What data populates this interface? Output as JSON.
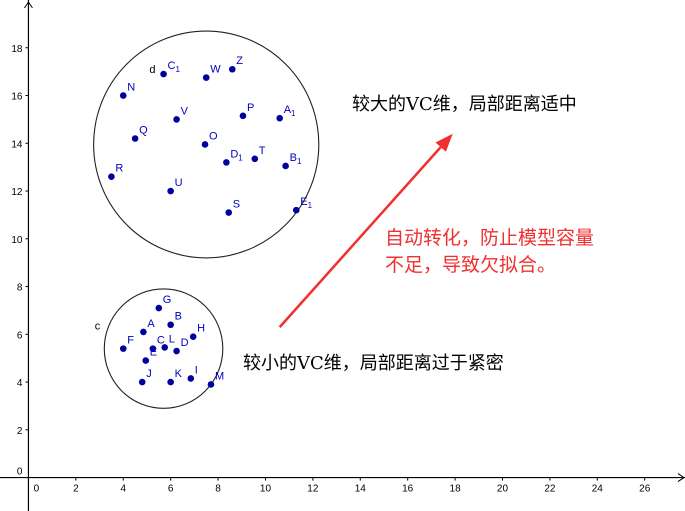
{
  "chart_data": {
    "type": "scatter",
    "title": "",
    "xlabel": "",
    "ylabel": "",
    "xlim": [
      -1.2,
      27.7
    ],
    "ylim": [
      -1.4,
      20
    ],
    "grid": false,
    "x_ticks": [
      "0",
      "2",
      "4",
      "6",
      "8",
      "10",
      "12",
      "14",
      "16",
      "18",
      "20",
      "22",
      "24",
      "26"
    ],
    "y_ticks": [
      "0",
      "2",
      "4",
      "6",
      "8",
      "10",
      "12",
      "14",
      "16",
      "18"
    ],
    "point_color": "#0000a0",
    "label_color": "#0000c0",
    "points": [
      {
        "name": "N",
        "base": "N",
        "sub": "",
        "x": 4.0,
        "y": 16.0
      },
      {
        "name": "C1",
        "base": "C",
        "sub": "1",
        "x": 5.7,
        "y": 16.9
      },
      {
        "name": "W",
        "base": "W",
        "sub": "",
        "x": 7.5,
        "y": 16.75
      },
      {
        "name": "Z",
        "base": "Z",
        "sub": "",
        "x": 8.6,
        "y": 17.1
      },
      {
        "name": "V",
        "base": "V",
        "sub": "",
        "x": 6.25,
        "y": 15.0
      },
      {
        "name": "P",
        "base": "P",
        "sub": "",
        "x": 9.05,
        "y": 15.15
      },
      {
        "name": "A1",
        "base": "A",
        "sub": "1",
        "x": 10.6,
        "y": 15.05
      },
      {
        "name": "Q",
        "base": "Q",
        "sub": "",
        "x": 4.5,
        "y": 14.2
      },
      {
        "name": "O",
        "base": "O",
        "sub": "",
        "x": 7.45,
        "y": 13.95
      },
      {
        "name": "D1",
        "base": "D",
        "sub": "1",
        "x": 8.35,
        "y": 13.2
      },
      {
        "name": "T",
        "base": "T",
        "sub": "",
        "x": 9.55,
        "y": 13.35
      },
      {
        "name": "B1",
        "base": "B",
        "sub": "1",
        "x": 10.85,
        "y": 13.05
      },
      {
        "name": "R",
        "base": "R",
        "sub": "",
        "x": 3.5,
        "y": 12.6
      },
      {
        "name": "U",
        "base": "U",
        "sub": "",
        "x": 6.0,
        "y": 12.0
      },
      {
        "name": "S",
        "base": "S",
        "sub": "",
        "x": 8.45,
        "y": 11.1
      },
      {
        "name": "E1",
        "base": "E",
        "sub": "1",
        "x": 11.3,
        "y": 11.2
      },
      {
        "name": "G",
        "base": "G",
        "sub": "",
        "x": 5.5,
        "y": 7.1
      },
      {
        "name": "A",
        "base": "A",
        "sub": "",
        "x": 4.85,
        "y": 6.1
      },
      {
        "name": "B",
        "base": "B",
        "sub": "",
        "x": 6.0,
        "y": 6.4
      },
      {
        "name": "H",
        "base": "H",
        "sub": "",
        "x": 6.95,
        "y": 5.9
      },
      {
        "name": "F",
        "base": "F",
        "sub": "",
        "x": 4.0,
        "y": 5.4
      },
      {
        "name": "C",
        "base": "C",
        "sub": "",
        "x": 5.25,
        "y": 5.4
      },
      {
        "name": "L",
        "base": "L",
        "sub": "",
        "x": 5.75,
        "y": 5.45
      },
      {
        "name": "D",
        "base": "D",
        "sub": "",
        "x": 6.25,
        "y": 5.3
      },
      {
        "name": "E",
        "base": "E",
        "sub": "",
        "x": 4.95,
        "y": 4.9
      },
      {
        "name": "J",
        "base": "J",
        "sub": "",
        "x": 4.8,
        "y": 4.0
      },
      {
        "name": "K",
        "base": "K",
        "sub": "",
        "x": 6.0,
        "y": 4.0
      },
      {
        "name": "I",
        "base": "I",
        "sub": "",
        "x": 6.85,
        "y": 4.15
      },
      {
        "name": "M",
        "base": "M",
        "sub": "",
        "x": 7.7,
        "y": 3.9
      }
    ],
    "circles": [
      {
        "name": "d",
        "cx": 7.5,
        "cy": 13.95,
        "r": 4.75
      },
      {
        "name": "c",
        "cx": 5.7,
        "cy": 5.4,
        "r": 2.5
      }
    ],
    "arrow": {
      "color": "#f03030",
      "from": [
        10.6,
        6.3
      ],
      "to": [
        17.9,
        14.4
      ]
    },
    "annotations": {
      "large_vc": "较大的VC维，局部距离适中",
      "small_vc": "较小的VC维，局部距离过于紧密",
      "transform": "自动转化，防止模型容量\n不足，导致欠拟合。"
    }
  }
}
